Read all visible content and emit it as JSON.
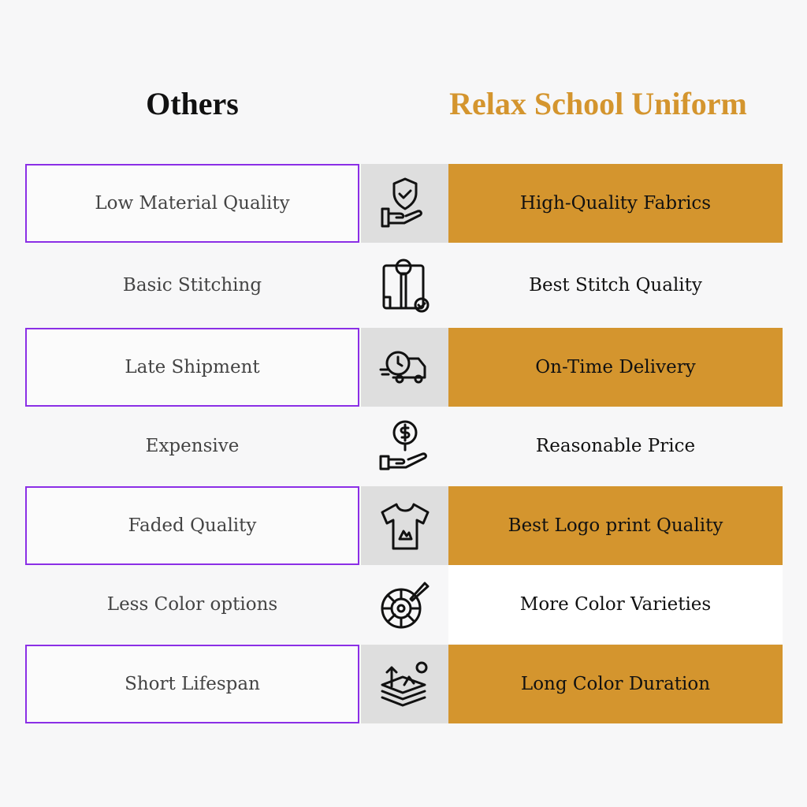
{
  "headers": {
    "left": "Others",
    "right": "Relax School Uniform"
  },
  "colors": {
    "accent": "#d4952e",
    "border": "#8b2fe6",
    "icon_bg": "#dedede"
  },
  "rows": [
    {
      "others": "Low Material Quality",
      "ours": "High-Quality Fabrics",
      "icon": "shield-hand-icon"
    },
    {
      "others": "Basic Stitching",
      "ours": "Best Stitch Quality",
      "icon": "shirt-check-icon"
    },
    {
      "others": "Late Shipment",
      "ours": "On-Time Delivery",
      "icon": "delivery-truck-clock-icon"
    },
    {
      "others": "Expensive",
      "ours": "Reasonable Price",
      "icon": "dollar-hand-icon"
    },
    {
      "others": "Faded Quality",
      "ours": "Best Logo print Quality",
      "icon": "tshirt-logo-icon"
    },
    {
      "others": "Less Color options",
      "ours": "More Color Varieties",
      "icon": "color-wheel-icon"
    },
    {
      "others": "Short Lifespan",
      "ours": "Long Color Duration",
      "icon": "layers-arrow-icon"
    }
  ]
}
